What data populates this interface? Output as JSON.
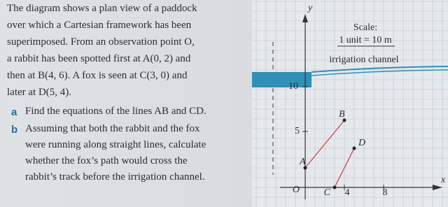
{
  "intro": {
    "lines": [
      "The diagram shows a plan view of a paddock",
      "over which a Cartesian framework has been",
      "superimposed. From an observation point O,",
      "a rabbit has been spotted first at A(0, 2) and",
      "then at B(4, 6). A fox is seen at C(3, 0) and",
      "later at D(5, 4)."
    ]
  },
  "questions": [
    {
      "label": "a",
      "lines": [
        "Find the equations of the lines AB and CD."
      ]
    },
    {
      "label": "b",
      "lines": [
        "Assuming that both the rabbit and the fox",
        "were running along straight lines, calculate",
        "whether the fox’s path would cross the",
        "rabbit’s track before the irrigation channel."
      ]
    }
  ],
  "diagram": {
    "y_label": "y",
    "x_label": "x",
    "scale_title": "Scale:",
    "scale_value": "1 unit = 10 m",
    "channel_label": "irrigation channel",
    "y_ticks": [
      "5",
      "10"
    ],
    "x_ticks": [
      "4",
      "8"
    ],
    "origin_label": "O",
    "points": [
      "A",
      "B",
      "C",
      "D"
    ]
  }
}
